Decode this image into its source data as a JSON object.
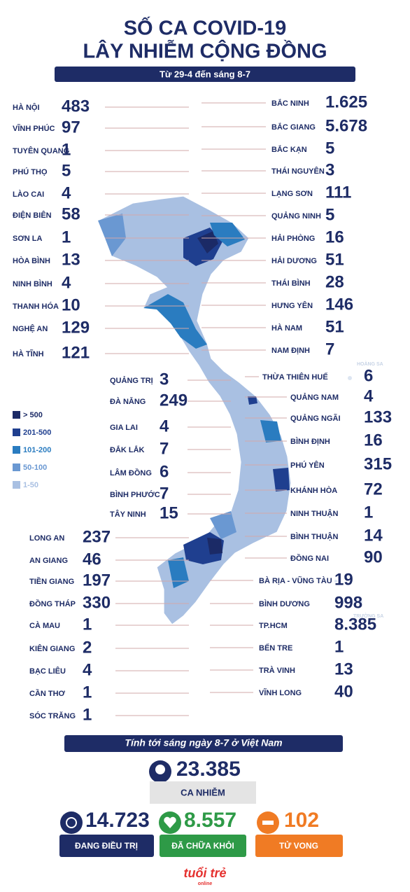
{
  "header": {
    "title_line1": "SỐ CA COVID-19",
    "title_line2": "LÂY NHIỄM CỘNG ĐỒNG",
    "subtitle": "Từ 29-4 đến sáng 8-7"
  },
  "provinces": {
    "north_left": [
      {
        "name": "HÀ NỘI",
        "cases": "483"
      },
      {
        "name": "VĨNH PHÚC",
        "cases": "97"
      },
      {
        "name": "TUYÊN QUANG",
        "cases": "1"
      },
      {
        "name": "PHÚ THỌ",
        "cases": "5"
      },
      {
        "name": "LÀO CAI",
        "cases": "4"
      },
      {
        "name": "ĐIỆN BIÊN",
        "cases": "58"
      },
      {
        "name": "SƠN LA",
        "cases": "1"
      },
      {
        "name": "HÒA BÌNH",
        "cases": "13"
      },
      {
        "name": "NINH BÌNH",
        "cases": "4"
      },
      {
        "name": "THANH HÓA",
        "cases": "10"
      },
      {
        "name": "NGHỆ AN",
        "cases": "129"
      },
      {
        "name": "HÀ TĨNH",
        "cases": "121"
      }
    ],
    "north_right": [
      {
        "name": "BẮC NINH",
        "cases": "1.625"
      },
      {
        "name": "BẮC GIANG",
        "cases": "5.678"
      },
      {
        "name": "BẮC KẠN",
        "cases": "5"
      },
      {
        "name": "THÁI NGUYÊN",
        "cases": "3"
      },
      {
        "name": "LẠNG SƠN",
        "cases": "111"
      },
      {
        "name": "QUẢNG NINH",
        "cases": "5"
      },
      {
        "name": "HẢI PHÒNG",
        "cases": "16"
      },
      {
        "name": "HẢI DƯƠNG",
        "cases": "51"
      },
      {
        "name": "THÁI BÌNH",
        "cases": "28"
      },
      {
        "name": "HƯNG YÊN",
        "cases": "146"
      },
      {
        "name": "HÀ NAM",
        "cases": "51"
      },
      {
        "name": "NAM ĐỊNH",
        "cases": "7"
      }
    ],
    "central_left": [
      {
        "name": "QUẢNG TRỊ",
        "cases": "3"
      },
      {
        "name": "ĐÀ NẴNG",
        "cases": "249"
      },
      {
        "name": "GIA LAI",
        "cases": "4"
      },
      {
        "name": "ĐẮK LẮK",
        "cases": "7"
      },
      {
        "name": "LÂM ĐỒNG",
        "cases": "6"
      },
      {
        "name": "BÌNH PHƯỚC",
        "cases": "7"
      },
      {
        "name": "TÂY NINH",
        "cases": "15"
      }
    ],
    "central_right": [
      {
        "name": "THỪA THIÊN HUẾ",
        "cases": "6"
      },
      {
        "name": "QUẢNG NAM",
        "cases": "4"
      },
      {
        "name": "QUẢNG NGÃI",
        "cases": "133"
      },
      {
        "name": "BÌNH ĐỊNH",
        "cases": "16"
      },
      {
        "name": "PHÚ YÊN",
        "cases": "315"
      },
      {
        "name": "KHÁNH HÒA",
        "cases": "72"
      },
      {
        "name": "NINH THUẬN",
        "cases": "1"
      },
      {
        "name": "BÌNH THUẬN",
        "cases": "14"
      },
      {
        "name": "ĐỒNG NAI",
        "cases": "90"
      }
    ],
    "south_left": [
      {
        "name": "LONG AN",
        "cases": "237"
      },
      {
        "name": "AN GIANG",
        "cases": "46"
      },
      {
        "name": "TIỀN GIANG",
        "cases": "197"
      },
      {
        "name": "ĐỒNG THÁP",
        "cases": "330"
      },
      {
        "name": "CÀ MAU",
        "cases": "1"
      },
      {
        "name": "KIÊN GIANG",
        "cases": "2"
      },
      {
        "name": "BẠC LIÊU",
        "cases": "4"
      },
      {
        "name": "CẦN THƠ",
        "cases": "1"
      },
      {
        "name": "SÓC TRĂNG",
        "cases": "1"
      }
    ],
    "south_right": [
      {
        "name": "BÀ RỊA - VŨNG TÀU",
        "cases": "19"
      },
      {
        "name": "BÌNH DƯƠNG",
        "cases": "998"
      },
      {
        "name": "TP.HCM",
        "cases": "8.385"
      },
      {
        "name": "BẾN TRE",
        "cases": "1"
      },
      {
        "name": "TRÀ VINH",
        "cases": "13"
      },
      {
        "name": "VĨNH LONG",
        "cases": "40"
      }
    ]
  },
  "legend": [
    {
      "label": "> 500",
      "color": "#1b2a66"
    },
    {
      "label": "201-500",
      "color": "#1f3f8f"
    },
    {
      "label": "101-200",
      "color": "#2a7cc0"
    },
    {
      "label": "50-100",
      "color": "#6a98d2"
    },
    {
      "label": "1-50",
      "color": "#a9c0e2"
    }
  ],
  "map": {
    "paracel": "HOÀNG SA",
    "spratly": "TRƯỜNG SA"
  },
  "summary": {
    "heading": "Tính tới sáng ngày 8-7 ở Việt Nam",
    "total": {
      "value": "23.385",
      "label": "CA NHIỄM"
    },
    "treating": {
      "value": "14.723",
      "label": "ĐANG ĐIỀU TRỊ"
    },
    "recovered": {
      "value": "8.557",
      "label": "ĐÃ CHỮA KHỎI"
    },
    "deaths": {
      "value": "102",
      "label": "TỬ VONG"
    }
  },
  "footer": {
    "brand": "tuổi trẻ",
    "brand_sub": "online"
  }
}
